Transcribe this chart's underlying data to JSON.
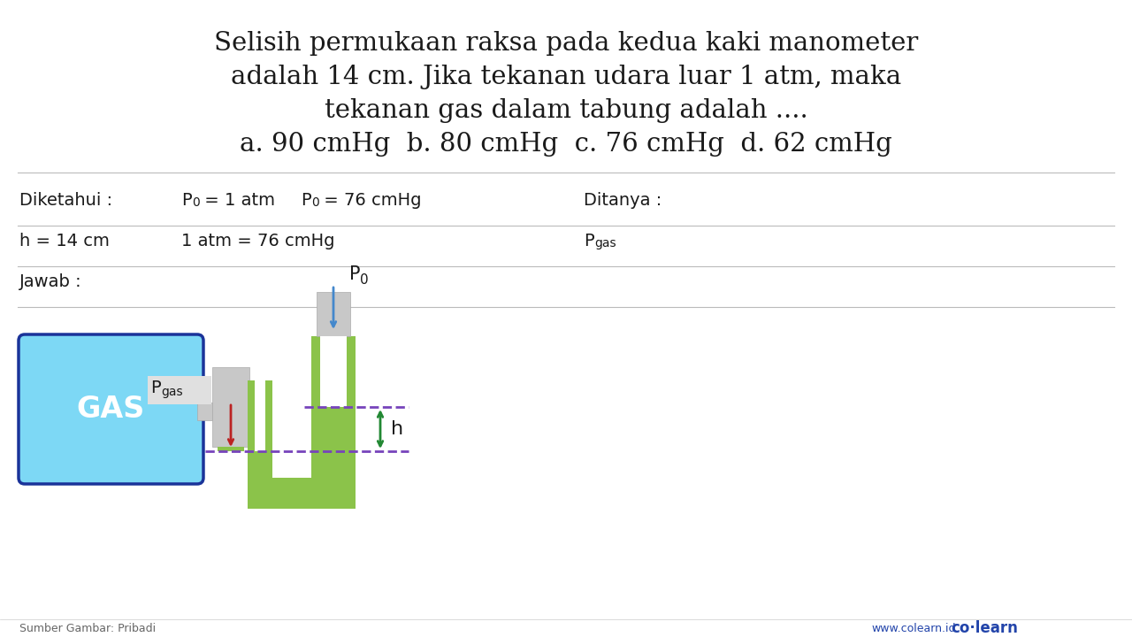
{
  "bg_color": "#ffffff",
  "text_color": "#1a1a1a",
  "gas_box_color": "#7dd8f5",
  "gas_box_border": "#1a3399",
  "manometer_green": "#8bc34a",
  "tube_gray": "#c8c8c8",
  "dashed_purple": "#7744bb",
  "arrow_p0_color": "#4488cc",
  "arrow_pgas_color": "#bb2222",
  "arrow_h_color": "#228833",
  "footer_source": "Sumber Gambar: Pribadi",
  "footer_brand1": "www.colearn.id",
  "footer_brand2": "co·learn",
  "footer_color": "#2244aa",
  "title_lines": [
    "Selisih permukaan raksa pada kedua kaki manometer",
    "adalah 14 cm. Jika tekanan udara luar 1 atm, maka",
    "tekanan gas dalam tabung adalah ....",
    "a. 90 cmHg  b. 80 cmHg  c. 76 cmHg  d. 62 cmHg"
  ]
}
